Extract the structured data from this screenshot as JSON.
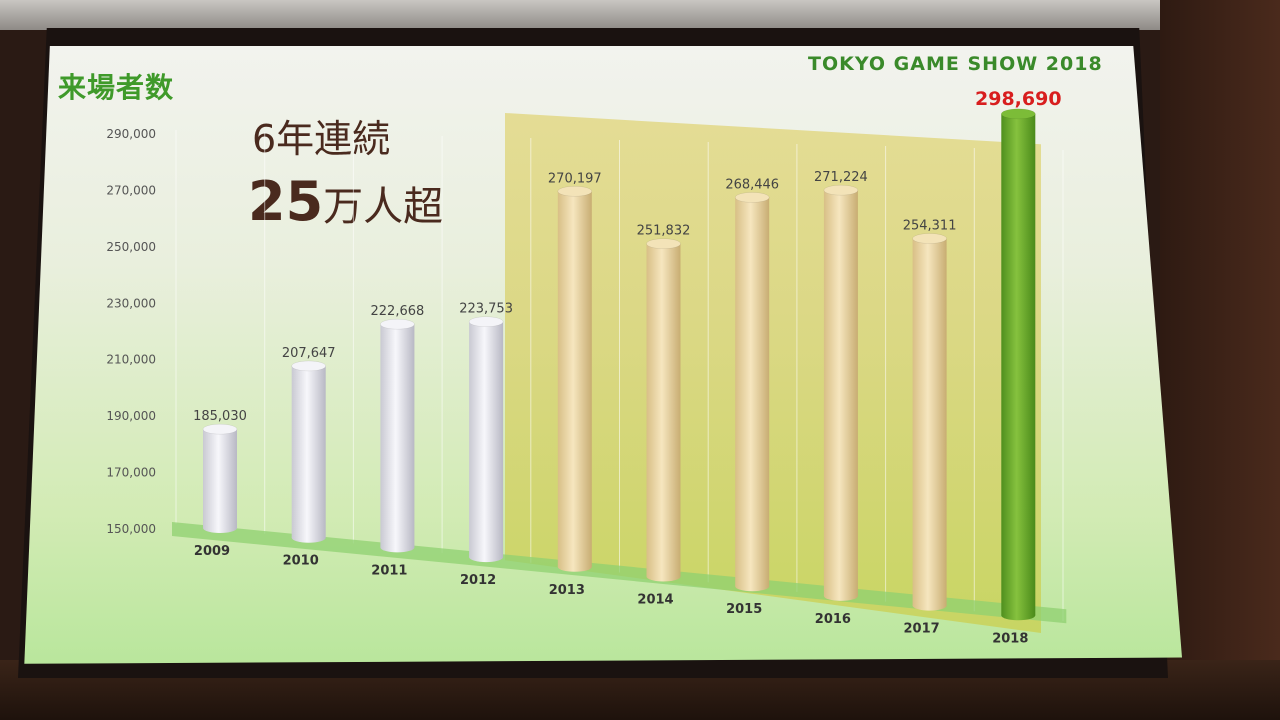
{
  "slide": {
    "title": "来場者数",
    "brand": "TOKYO GAME SHOW 2018",
    "headline_line1": "6年連続",
    "headline_line2_big": "25",
    "headline_line2_rest": "万人超"
  },
  "chart_data": {
    "type": "bar",
    "title": "来場者数",
    "categories": [
      "2009",
      "2010",
      "2011",
      "2012",
      "2013",
      "2014",
      "2015",
      "2016",
      "2017",
      "2018"
    ],
    "values": [
      185030,
      207647,
      222668,
      223753,
      270197,
      251832,
      268446,
      271224,
      254311,
      298690
    ],
    "value_labels": [
      "185,030",
      "207,647",
      "222,668",
      "223,753",
      "270,197",
      "251,832",
      "268,446",
      "271,224",
      "254,311",
      "298,690"
    ],
    "yticks": [
      "290,000",
      "270,000",
      "250,000",
      "230,000",
      "210,000",
      "190,000",
      "170,000",
      "150,000"
    ],
    "ytick_values": [
      290000,
      270000,
      250000,
      230000,
      210000,
      190000,
      170000,
      150000
    ],
    "ylim": [
      150000,
      290000
    ],
    "grid": true,
    "colors": {
      "white_bar": "#e6e6ee",
      "beige_bar": "#ecd7a6",
      "green_bar": "#6fae2c",
      "highlight_label": "#d81e1e",
      "label": "#444444"
    },
    "bar_groups": [
      "white",
      "white",
      "white",
      "white",
      "beige",
      "beige",
      "beige",
      "beige",
      "beige",
      "green"
    ]
  }
}
